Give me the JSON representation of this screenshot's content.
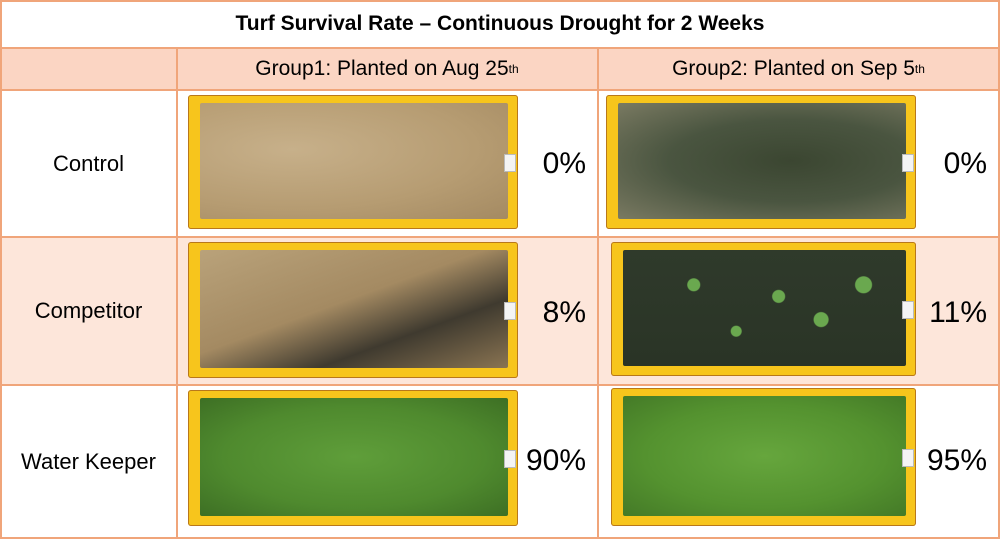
{
  "title": "Turf Survival Rate – Continuous Drought for 2 Weeks",
  "groups": [
    {
      "label": "Group1: Planted on Aug 25",
      "suffix": "th"
    },
    {
      "label": "Group2: Planted on Sep 5",
      "suffix": "th"
    }
  ],
  "rows": [
    {
      "label": "Control",
      "g1": "0%",
      "g2": "0%"
    },
    {
      "label": "Competitor",
      "g1": "8%",
      "g2": "11%"
    },
    {
      "label": "Water Keeper",
      "g1": "90%",
      "g2": "95%"
    }
  ],
  "colors": {
    "border": "#f0a57a",
    "header_fill": "#fbd5c3",
    "tray": "#f7c51c",
    "dry_turf": "#b9a27a",
    "dark_soil": "#2f3a2b",
    "green_turf": "#4f8a2e"
  }
}
